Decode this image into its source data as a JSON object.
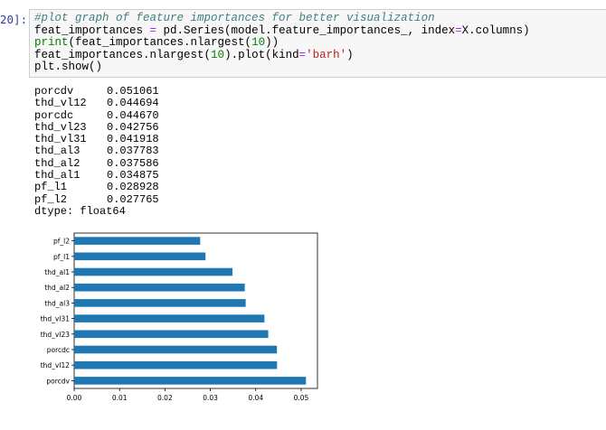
{
  "prompt_label": "20]:",
  "code_lines": [
    [
      {
        "t": "#plot graph of feature importances for better visualization",
        "c": "comment"
      }
    ],
    [
      {
        "t": "feat_importances ",
        "c": ""
      },
      {
        "t": "=",
        "c": "op"
      },
      {
        "t": " pd.Series(model.feature_importances_, index",
        "c": ""
      },
      {
        "t": "=",
        "c": "op"
      },
      {
        "t": "X.columns)",
        "c": ""
      }
    ],
    [
      {
        "t": "print",
        "c": "builtin"
      },
      {
        "t": "(feat_importances.nlargest(",
        "c": ""
      },
      {
        "t": "10",
        "c": "num"
      },
      {
        "t": "))",
        "c": ""
      }
    ],
    [
      {
        "t": "feat_importances.nlargest(",
        "c": ""
      },
      {
        "t": "10",
        "c": "num"
      },
      {
        "t": ").plot(kind",
        "c": ""
      },
      {
        "t": "=",
        "c": "op"
      },
      {
        "t": "'barh'",
        "c": "str"
      },
      {
        "t": ")",
        "c": ""
      }
    ],
    [
      {
        "t": "plt.show()",
        "c": ""
      }
    ]
  ],
  "output_rows": [
    {
      "feature": "porcdv",
      "value": "0.051061"
    },
    {
      "feature": "thd_vl12",
      "value": "0.044694"
    },
    {
      "feature": "porcdc",
      "value": "0.044670"
    },
    {
      "feature": "thd_vl23",
      "value": "0.042756"
    },
    {
      "feature": "thd_vl31",
      "value": "0.041918"
    },
    {
      "feature": "thd_al3",
      "value": "0.037783"
    },
    {
      "feature": "thd_al2",
      "value": "0.037586"
    },
    {
      "feature": "thd_al1",
      "value": "0.034875"
    },
    {
      "feature": "pf_l1",
      "value": "0.028928"
    },
    {
      "feature": "pf_l2",
      "value": "0.027765"
    }
  ],
  "dtype_line": "dtype: float64",
  "chart_data": {
    "type": "bar",
    "orientation": "horizontal",
    "categories": [
      "porcdv",
      "thd_vl12",
      "porcdc",
      "thd_vl23",
      "thd_vl31",
      "thd_al3",
      "thd_al2",
      "thd_al1",
      "pf_l1",
      "pf_l2"
    ],
    "values": [
      0.051061,
      0.044694,
      0.04467,
      0.042756,
      0.041918,
      0.037783,
      0.037586,
      0.034875,
      0.028928,
      0.027765
    ],
    "xlim": [
      0,
      0.0536
    ],
    "xticks": [
      "0.00",
      "0.01",
      "0.02",
      "0.03",
      "0.04",
      "0.05"
    ],
    "bar_color": "#1f77b4",
    "grid": false
  }
}
